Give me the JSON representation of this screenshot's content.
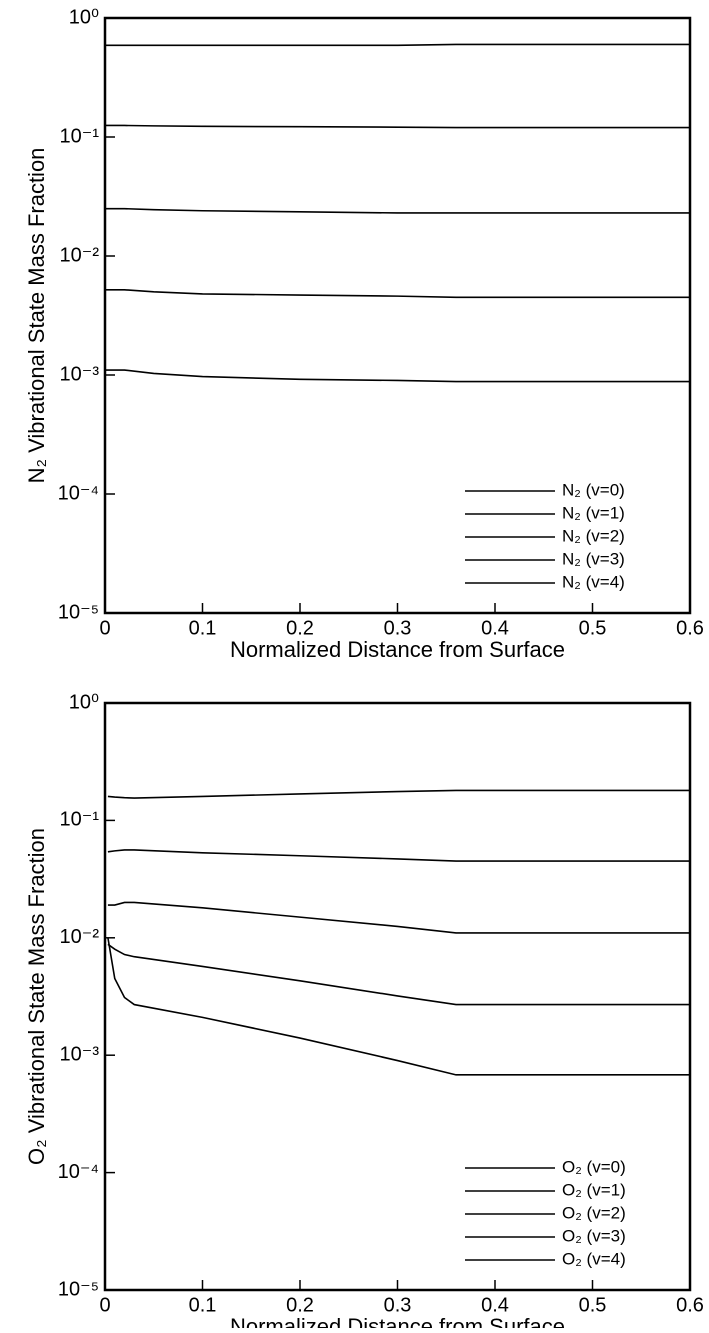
{
  "chart_data": [
    {
      "type": "line",
      "y_label": "N₂ Vibrational State Mass Fraction",
      "x_label": "Normalized Distance from Surface",
      "x": [
        0,
        0.02,
        0.05,
        0.1,
        0.2,
        0.3,
        0.36,
        0.45,
        0.6
      ],
      "series": [
        {
          "name": "N₂ (v=0)",
          "color": "#000000",
          "values": [
            0.59,
            0.59,
            0.59,
            0.59,
            0.59,
            0.59,
            0.6,
            0.6,
            0.6
          ]
        },
        {
          "name": "N₂ (v=1)",
          "color": "#000000",
          "values": [
            0.125,
            0.125,
            0.124,
            0.123,
            0.122,
            0.121,
            0.12,
            0.12,
            0.12
          ]
        },
        {
          "name": "N₂ (v=2)",
          "color": "#000000",
          "values": [
            0.025,
            0.025,
            0.0245,
            0.024,
            0.0235,
            0.023,
            0.023,
            0.023,
            0.023
          ]
        },
        {
          "name": "N₂ (v=3)",
          "color": "#000000",
          "values": [
            0.0052,
            0.0052,
            0.005,
            0.0048,
            0.0047,
            0.0046,
            0.0045,
            0.0045,
            0.0045
          ]
        },
        {
          "name": "N₂ (v=4)",
          "color": "#000000",
          "values": [
            0.0011,
            0.0011,
            0.00103,
            0.00097,
            0.00092,
            0.0009,
            0.00088,
            0.00088,
            0.00088
          ]
        }
      ],
      "xlim": [
        0,
        0.6
      ],
      "ylim": [
        1e-05,
        1
      ],
      "log_y": true,
      "legend": "lower right",
      "xticks": [
        0,
        0.1,
        0.2,
        0.3,
        0.4,
        0.5,
        0.6
      ],
      "yticks": [
        {
          "value": 1e-05,
          "label": "10⁻⁵"
        },
        {
          "value": 0.0001,
          "label": "10⁻⁴"
        },
        {
          "value": 0.001,
          "label": "10⁻³"
        },
        {
          "value": 0.01,
          "label": "10⁻²"
        },
        {
          "value": 0.1,
          "label": "10⁻¹"
        },
        {
          "value": 1,
          "label": "10⁰"
        }
      ]
    },
    {
      "type": "line",
      "y_label": "O₂ Vibrational State Mass Fraction",
      "x_label": "Normalized Distance from Surface",
      "x": [
        0.003,
        0.01,
        0.02,
        0.03,
        0.1,
        0.2,
        0.3,
        0.36,
        0.4,
        0.5,
        0.6
      ],
      "series": [
        {
          "name": "O₂ (v=0)",
          "color": "#000000",
          "values": [
            0.16,
            0.158,
            0.156,
            0.155,
            0.16,
            0.168,
            0.176,
            0.18,
            0.18,
            0.18,
            0.18
          ]
        },
        {
          "name": "O₂ (v=1)",
          "color": "#000000",
          "values": [
            0.054,
            0.055,
            0.056,
            0.056,
            0.053,
            0.05,
            0.047,
            0.045,
            0.045,
            0.045,
            0.045
          ]
        },
        {
          "name": "O₂ (v=2)",
          "color": "#000000",
          "values": [
            0.019,
            0.019,
            0.02,
            0.02,
            0.018,
            0.015,
            0.0125,
            0.011,
            0.011,
            0.011,
            0.011
          ]
        },
        {
          "name": "O₂ (v=3)",
          "color": "#000000",
          "values": [
            0.0088,
            0.008,
            0.0072,
            0.0069,
            0.0057,
            0.0043,
            0.0032,
            0.0027,
            0.0027,
            0.0027,
            0.0027
          ]
        },
        {
          "name": "O₂ (v=4)",
          "color": "#000000",
          "values": [
            0.01,
            0.0045,
            0.0031,
            0.0027,
            0.0021,
            0.0014,
            0.0009,
            0.00068,
            0.00068,
            0.00068,
            0.00068
          ]
        }
      ],
      "xlim": [
        0,
        0.6
      ],
      "ylim": [
        1e-05,
        1
      ],
      "log_y": true,
      "legend": "lower right",
      "xticks": [
        0,
        0.1,
        0.2,
        0.3,
        0.4,
        0.5,
        0.6
      ],
      "yticks": [
        {
          "value": 1e-05,
          "label": "10⁻⁵"
        },
        {
          "value": 0.0001,
          "label": "10⁻⁴"
        },
        {
          "value": 0.001,
          "label": "10⁻³"
        },
        {
          "value": 0.01,
          "label": "10⁻²"
        },
        {
          "value": 0.1,
          "label": "10⁻¹"
        },
        {
          "value": 1,
          "label": "10⁰"
        }
      ]
    }
  ]
}
